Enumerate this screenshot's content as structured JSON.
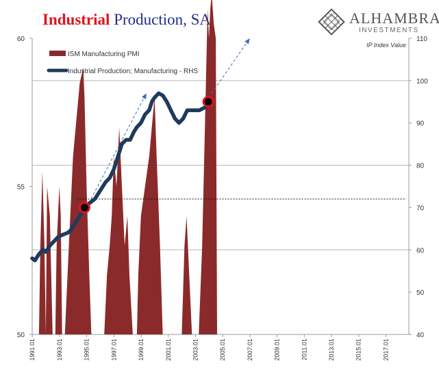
{
  "title": {
    "part1": "Industrial",
    "part2": "Production, SA"
  },
  "logo": {
    "name": "ALHAMBRA",
    "tagline": "INVESTMENTS",
    "icon": "diamond-lattice-icon"
  },
  "colors": {
    "bars": "#8b2a2a",
    "line": "#1f3a5c",
    "marker": "#e0141b",
    "arrow": "#3d6fb5",
    "title_red": "#e0141b",
    "title_blue": "#1f2f8a"
  },
  "chart_data": {
    "type": "area",
    "right_axis_label": "IP Index Value",
    "left_axis": {
      "ylim": [
        50,
        60
      ],
      "ticks": [
        50,
        55,
        60
      ]
    },
    "right_axis": {
      "ylim": [
        40,
        110
      ],
      "ticks": [
        40,
        50,
        60,
        70,
        80,
        90,
        100,
        110
      ]
    },
    "x_ticks": [
      "1991.01",
      "1993.01",
      "1995.01",
      "1997.01",
      "1999.01",
      "2001.01",
      "2003.01",
      "2005.01",
      "2007.01",
      "2009.01",
      "2011.01",
      "2013.01",
      "2015.01",
      "2017.01"
    ],
    "x_range": [
      1991.0,
      2018.7
    ],
    "legend": [
      {
        "name": "ISM Manufacturing PMI",
        "kind": "bar"
      },
      {
        "name": "Industrial Production; Manufacturing - RHS",
        "kind": "line"
      }
    ],
    "series": [
      {
        "name": "ISM Manufacturing PMI",
        "axis": "left",
        "points": [
          [
            1991.0,
            50
          ],
          [
            1991.5,
            50
          ],
          [
            1991.6,
            53
          ],
          [
            1991.75,
            55.5
          ],
          [
            1991.9,
            53
          ],
          [
            1992.0,
            50
          ],
          [
            1992.1,
            55
          ],
          [
            1992.3,
            54
          ],
          [
            1992.5,
            50
          ],
          [
            1992.7,
            50
          ],
          [
            1992.8,
            53
          ],
          [
            1993.0,
            55
          ],
          [
            1993.1,
            54
          ],
          [
            1993.2,
            50
          ],
          [
            1993.4,
            50
          ],
          [
            1993.6,
            52
          ],
          [
            1993.8,
            54
          ],
          [
            1994.0,
            56
          ],
          [
            1994.3,
            57.5
          ],
          [
            1994.5,
            58.5
          ],
          [
            1994.75,
            59
          ],
          [
            1994.85,
            58
          ],
          [
            1995.0,
            55
          ],
          [
            1995.2,
            52
          ],
          [
            1995.35,
            50
          ],
          [
            1995.6,
            50
          ],
          [
            1996.3,
            50
          ],
          [
            1996.5,
            52
          ],
          [
            1996.7,
            53
          ],
          [
            1996.85,
            54
          ],
          [
            1997.0,
            56
          ],
          [
            1997.2,
            55
          ],
          [
            1997.4,
            57
          ],
          [
            1997.6,
            55
          ],
          [
            1997.8,
            53
          ],
          [
            1998.0,
            54
          ],
          [
            1998.15,
            52
          ],
          [
            1998.4,
            50
          ],
          [
            1998.7,
            50
          ],
          [
            1998.8,
            52
          ],
          [
            1999.0,
            54
          ],
          [
            1999.3,
            55
          ],
          [
            1999.6,
            56
          ],
          [
            1999.8,
            57
          ],
          [
            2000.0,
            58
          ],
          [
            2000.15,
            56
          ],
          [
            2000.4,
            53
          ],
          [
            2000.6,
            50
          ],
          [
            2002.0,
            50
          ],
          [
            2002.2,
            53
          ],
          [
            2002.35,
            54
          ],
          [
            2002.55,
            52
          ],
          [
            2002.75,
            50
          ],
          [
            2003.25,
            50
          ],
          [
            2003.5,
            53
          ],
          [
            2003.75,
            58
          ],
          [
            2003.9,
            61
          ],
          [
            2004.0,
            60
          ],
          [
            2004.1,
            61
          ],
          [
            2004.2,
            61.5
          ],
          [
            2004.35,
            60.5
          ],
          [
            2004.5,
            60
          ],
          [
            2004.6,
            50
          ]
        ]
      },
      {
        "name": "Industrial Production; Manufacturing - RHS",
        "axis": "right",
        "points": [
          [
            1991.0,
            58
          ],
          [
            1991.2,
            57.5
          ],
          [
            1991.5,
            59
          ],
          [
            1991.8,
            60
          ],
          [
            1992.0,
            59.5
          ],
          [
            1992.3,
            61
          ],
          [
            1992.6,
            62
          ],
          [
            1992.9,
            63
          ],
          [
            1993.2,
            63.5
          ],
          [
            1993.6,
            64
          ],
          [
            1993.8,
            64.5
          ],
          [
            1994.0,
            65.5
          ],
          [
            1994.3,
            67
          ],
          [
            1994.6,
            68.5
          ],
          [
            1994.85,
            70
          ],
          [
            1995.2,
            71
          ],
          [
            1995.6,
            72
          ],
          [
            1996.0,
            74
          ],
          [
            1996.4,
            76
          ],
          [
            1996.7,
            77
          ],
          [
            1997.0,
            79
          ],
          [
            1997.3,
            82
          ],
          [
            1997.6,
            85
          ],
          [
            1997.9,
            86
          ],
          [
            1998.2,
            86
          ],
          [
            1998.5,
            88
          ],
          [
            1998.7,
            89
          ],
          [
            1999.0,
            90
          ],
          [
            1999.3,
            92
          ],
          [
            1999.6,
            93
          ],
          [
            1999.8,
            95
          ],
          [
            2000.0,
            96
          ],
          [
            2000.3,
            97
          ],
          [
            2000.6,
            96.5
          ],
          [
            2000.9,
            95
          ],
          [
            2001.2,
            93
          ],
          [
            2001.5,
            91
          ],
          [
            2001.8,
            90
          ],
          [
            2002.1,
            91
          ],
          [
            2002.4,
            93
          ],
          [
            2002.7,
            93
          ],
          [
            2003.0,
            93
          ],
          [
            2003.3,
            93
          ],
          [
            2003.6,
            93.5
          ],
          [
            2003.9,
            94
          ],
          [
            2004.0,
            95
          ]
        ]
      }
    ],
    "highlight_points": [
      [
        1994.85,
        70
      ],
      [
        2003.95,
        95
      ]
    ],
    "reference_line": {
      "axis": "right",
      "value": 72,
      "from": 1994.3,
      "to": 2018.5
    },
    "trend_arrows": [
      {
        "from": [
          1995.0,
          70
        ],
        "to": [
          1999.4,
          97
        ]
      },
      {
        "from": [
          2004.2,
          97
        ],
        "to": [
          2007.0,
          110
        ]
      }
    ]
  }
}
